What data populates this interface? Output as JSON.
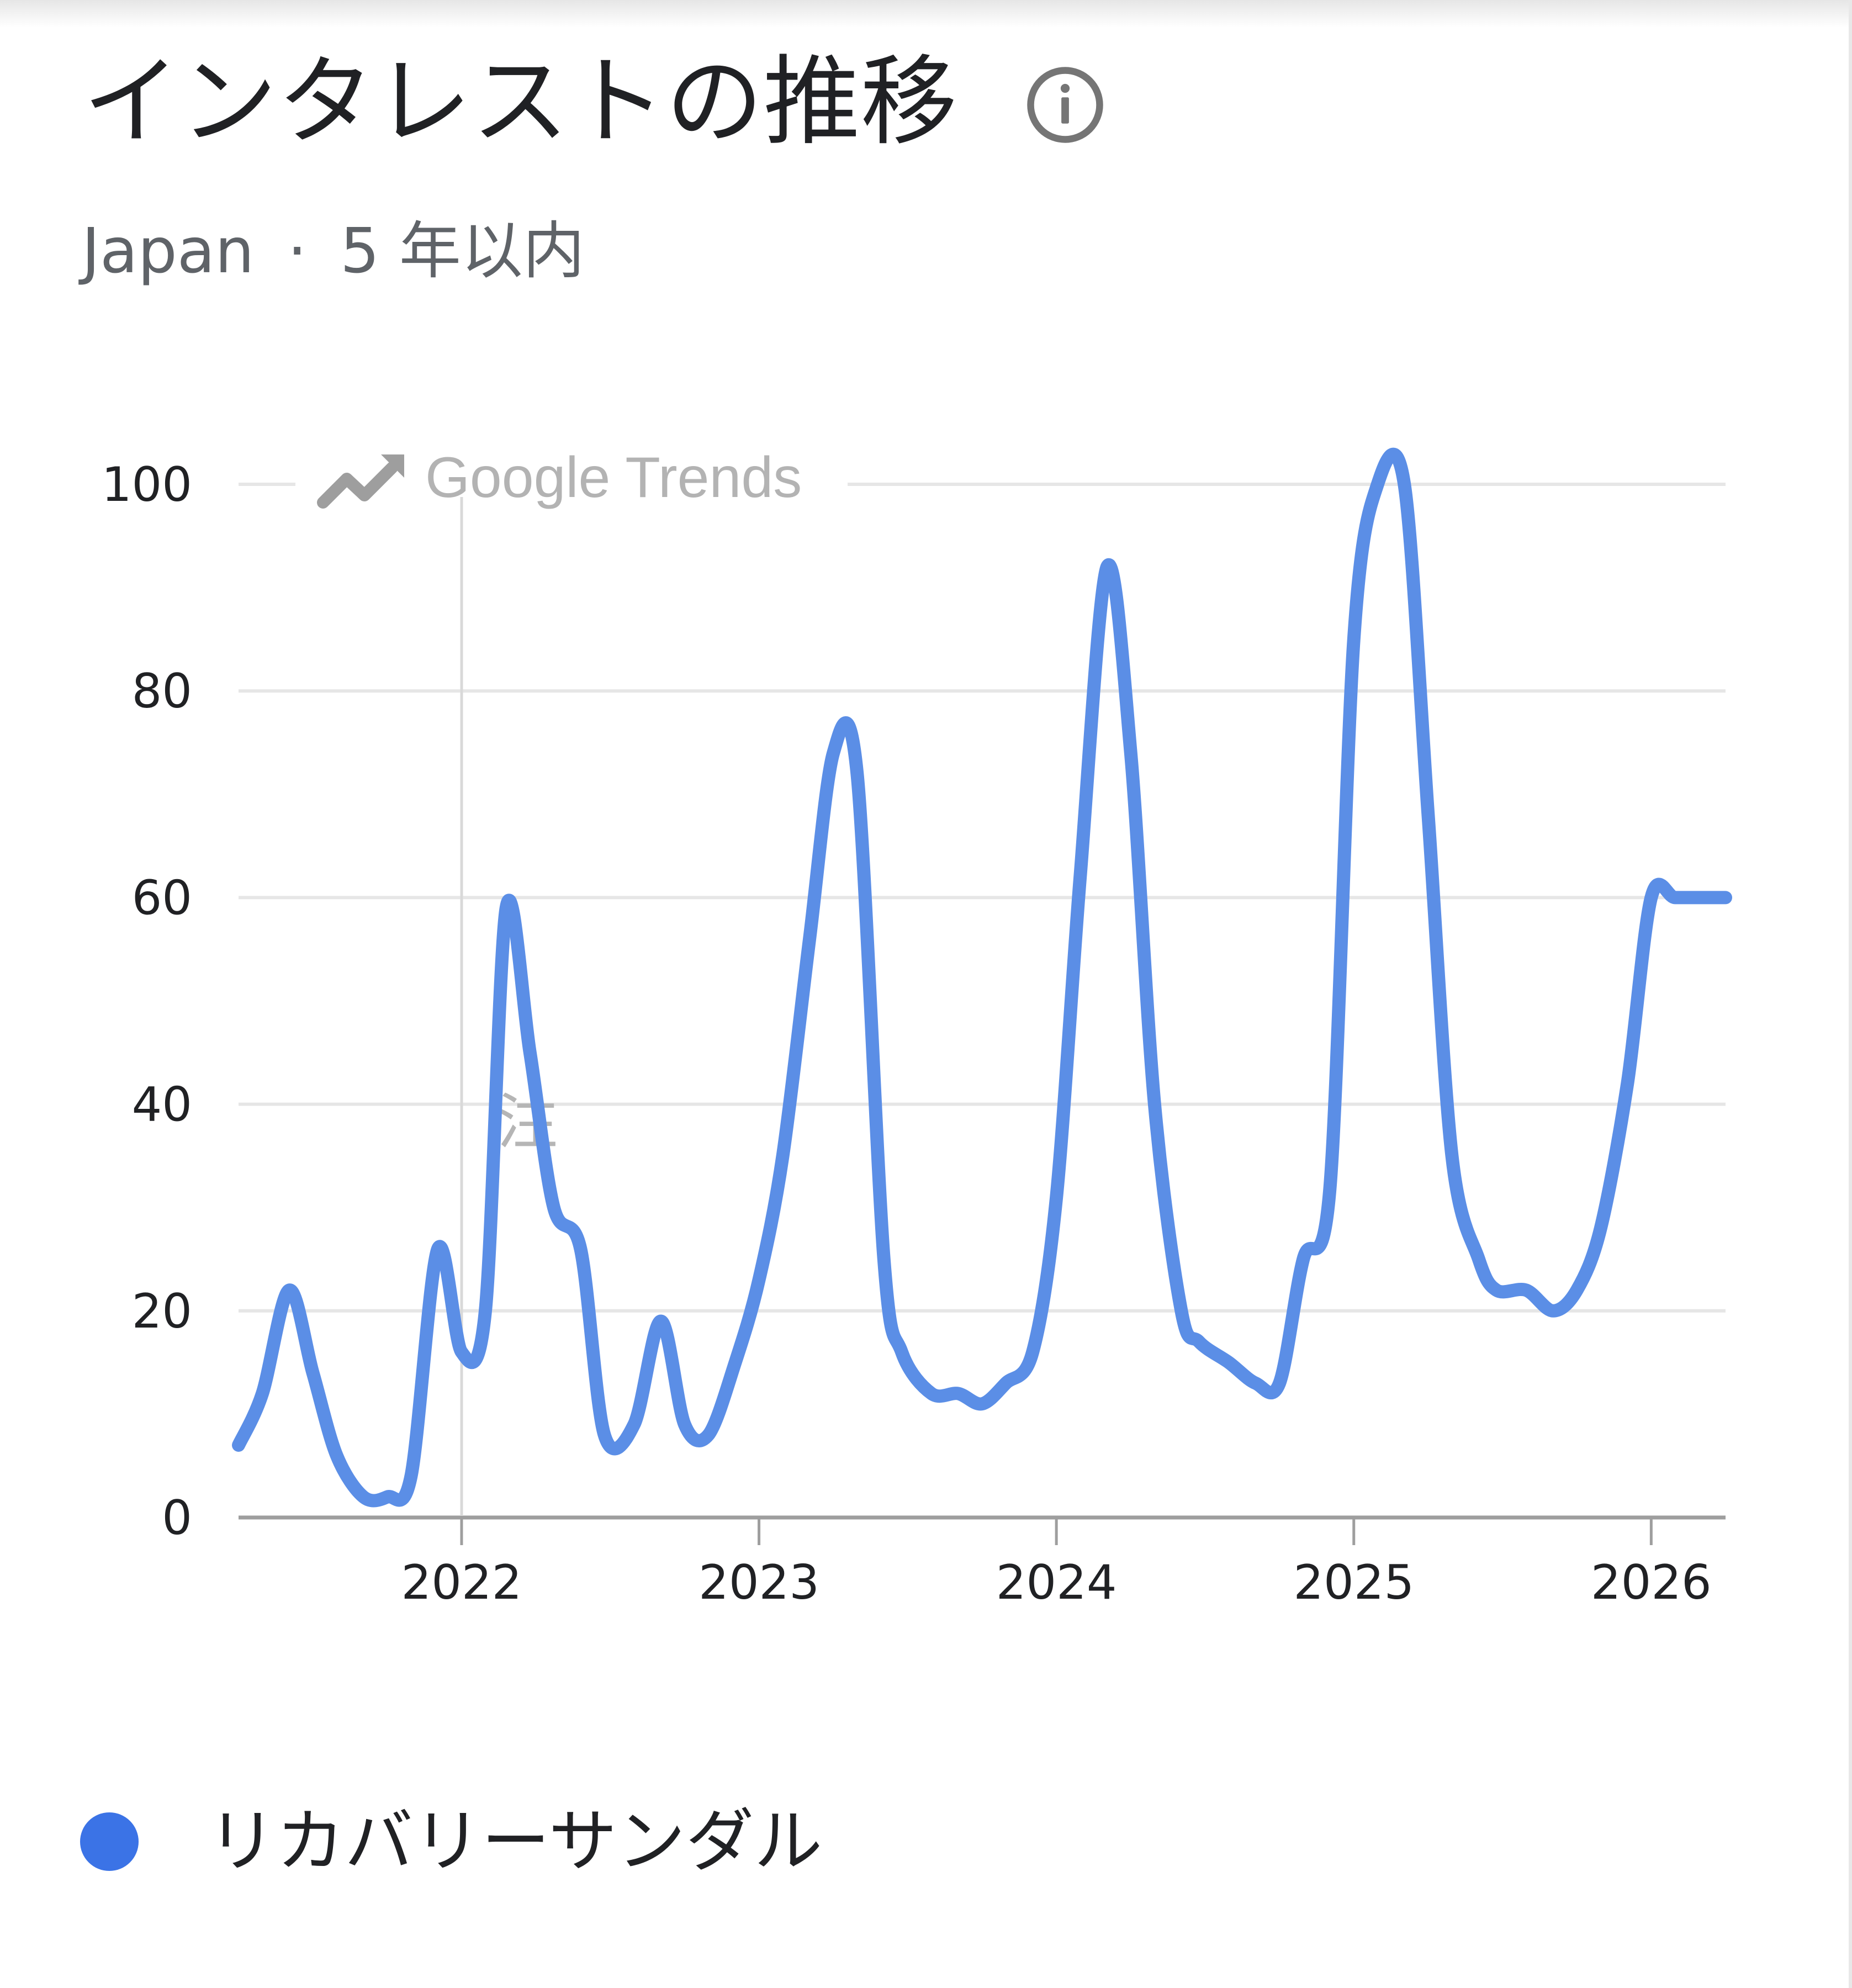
{
  "header": {
    "title": "インタレストの推移",
    "info_icon": "info-icon"
  },
  "subtitle": {
    "region": "Japan",
    "separator": "·",
    "range": "5 年以内"
  },
  "watermark": {
    "text": "Google Trends",
    "icon": "trending-up-icon"
  },
  "annotation": {
    "text": "注"
  },
  "legend": {
    "label": "リカバリーサンダル",
    "color": "#3b73e6"
  },
  "chart_data": {
    "type": "line",
    "title": "インタレストの推移",
    "xlabel": "",
    "ylabel": "",
    "ylim": [
      0,
      100
    ],
    "yticks": [
      "0",
      "20",
      "40",
      "60",
      "80",
      "100"
    ],
    "xticks": [
      "2022",
      "2023",
      "2024",
      "2025",
      "2026"
    ],
    "grid": true,
    "line_color": "#5b8ee6",
    "series": [
      {
        "name": "リカバリーサンダル",
        "x": [
          2021.25,
          2021.33,
          2021.42,
          2021.5,
          2021.58,
          2021.67,
          2021.75,
          2021.83,
          2021.92,
          2022.0,
          2022.08,
          2022.15,
          2022.23,
          2022.31,
          2022.4,
          2022.48,
          2022.58,
          2022.67,
          2022.75,
          2022.83,
          2022.92,
          2023.0,
          2023.08,
          2023.17,
          2023.25,
          2023.33,
          2023.42,
          2023.48,
          2023.58,
          2023.67,
          2023.75,
          2023.83,
          2023.92,
          2024.0,
          2024.08,
          2024.17,
          2024.25,
          2024.33,
          2024.42,
          2024.48,
          2024.58,
          2024.67,
          2024.75,
          2024.83,
          2024.92,
          2025.0,
          2025.08,
          2025.17,
          2025.25,
          2025.33,
          2025.42,
          2025.48,
          2025.58,
          2025.67,
          2025.75,
          2025.83,
          2025.92,
          2026.0,
          2026.08,
          2026.17,
          2026.25
        ],
        "values": [
          7,
          12,
          22,
          14,
          6,
          2,
          2,
          4,
          26,
          16,
          20,
          59,
          45,
          30,
          26,
          8,
          9,
          19,
          9,
          8,
          15,
          23,
          35,
          56,
          74,
          72,
          25,
          16,
          12,
          12,
          11,
          13,
          16,
          31,
          62,
          92,
          74,
          40,
          20,
          17,
          15,
          13,
          13,
          25,
          32,
          85,
          100,
          100,
          68,
          35,
          25,
          22,
          22,
          20,
          22,
          28,
          42,
          60,
          60,
          60,
          60
        ]
      }
    ]
  }
}
